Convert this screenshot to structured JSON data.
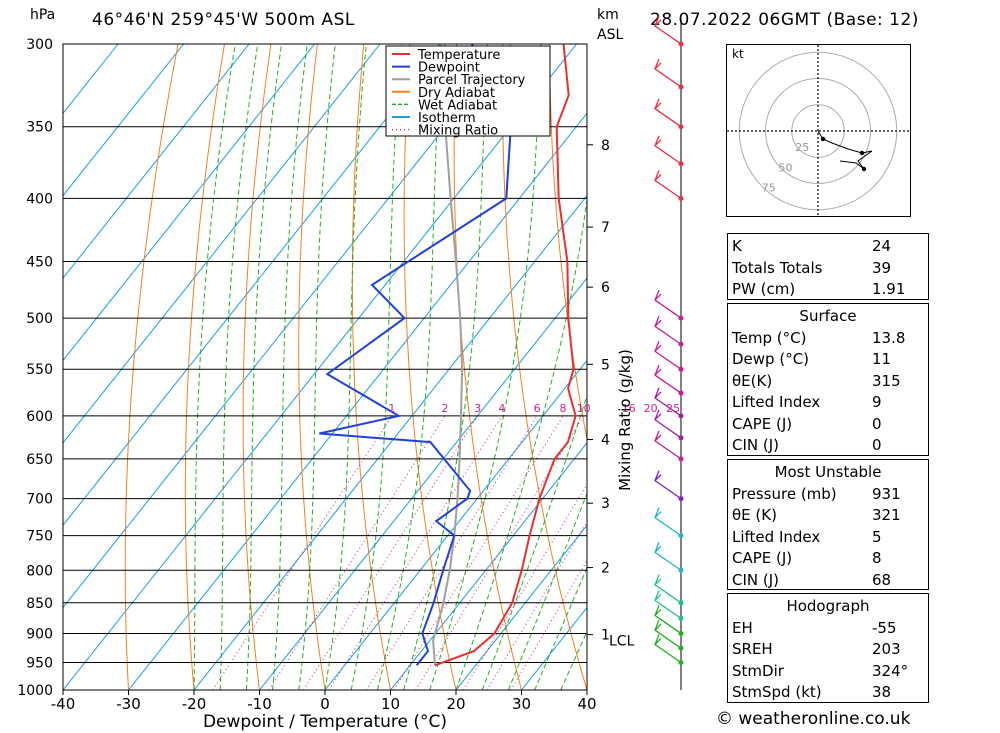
{
  "header": {
    "location": "46°46'N  259°45'W  500m  ASL",
    "datetime": "28.07.2022  06GMT  (Base: 12)",
    "pressure_unit": "hPa",
    "height_unit": "km",
    "height_ref": "ASL"
  },
  "footer": {
    "credit": "© weatheronline.co.uk"
  },
  "chart_data": {
    "type": "skew-t",
    "xlabel": "Dewpoint / Temperature (°C)",
    "ylabel_right": "Mixing Ratio (g/kg)",
    "x_ticks": [
      "-40",
      "-30",
      "-20",
      "-10",
      "0",
      "10",
      "20",
      "30",
      "40"
    ],
    "x_tick_values": [
      -40,
      -30,
      -20,
      -10,
      0,
      10,
      20,
      30,
      40
    ],
    "y_ticks": [
      "300",
      "350",
      "400",
      "450",
      "500",
      "550",
      "600",
      "650",
      "700",
      "750",
      "800",
      "850",
      "900",
      "950",
      "1000"
    ],
    "y_tick_values": [
      300,
      350,
      400,
      450,
      500,
      550,
      600,
      650,
      700,
      750,
      800,
      850,
      900,
      950,
      1000
    ],
    "km_ticks": [
      {
        "label": "8",
        "p": 362
      },
      {
        "label": "7",
        "p": 422
      },
      {
        "label": "6",
        "p": 472
      },
      {
        "label": "5",
        "p": 545
      },
      {
        "label": "4",
        "p": 627
      },
      {
        "label": "3",
        "p": 706
      },
      {
        "label": "2",
        "p": 796
      },
      {
        "label": "1",
        "p": 902
      }
    ],
    "lcl": {
      "label": "LCL",
      "p": 912
    },
    "mixing_ratio_labels": [
      "1",
      "2",
      "3",
      "4",
      "6",
      "8",
      "10",
      "16",
      "20",
      "25"
    ],
    "legend": [
      {
        "name": "Temperature",
        "color": "#e83030",
        "style": "solid"
      },
      {
        "name": "Dewpoint",
        "color": "#2040d8",
        "style": "solid"
      },
      {
        "name": "Parcel Trajectory",
        "color": "#a0a0a0",
        "style": "solid"
      },
      {
        "name": "Dry Adiabat",
        "color": "#f08020",
        "style": "solid"
      },
      {
        "name": "Wet Adiabat",
        "color": "#20b020",
        "style": "dashed"
      },
      {
        "name": "Isotherm",
        "color": "#1a9ee0",
        "style": "solid"
      },
      {
        "name": "Mixing Ratio",
        "color": "#d02090",
        "style": "dotted"
      }
    ],
    "series": [
      {
        "name": "Temperature",
        "points": [
          {
            "p": 955,
            "t": 13.8
          },
          {
            "p": 930,
            "t": 18.0
          },
          {
            "p": 900,
            "t": 19.0
          },
          {
            "p": 850,
            "t": 18.0
          },
          {
            "p": 800,
            "t": 15.5
          },
          {
            "p": 750,
            "t": 12.5
          },
          {
            "p": 700,
            "t": 9.5
          },
          {
            "p": 650,
            "t": 7.0
          },
          {
            "p": 630,
            "t": 7.0
          },
          {
            "p": 600,
            "t": 5.0
          },
          {
            "p": 570,
            "t": 0.5
          },
          {
            "p": 550,
            "t": -1.0
          },
          {
            "p": 500,
            "t": -8.0
          },
          {
            "p": 450,
            "t": -15.0
          },
          {
            "p": 400,
            "t": -24.0
          },
          {
            "p": 350,
            "t": -33.0
          },
          {
            "p": 330,
            "t": -35.0
          },
          {
            "p": 300,
            "t": -42.0
          }
        ]
      },
      {
        "name": "Dewpoint",
        "points": [
          {
            "p": 955,
            "t": 11.0
          },
          {
            "p": 930,
            "t": 11.0
          },
          {
            "p": 900,
            "t": 8.0
          },
          {
            "p": 850,
            "t": 6.0
          },
          {
            "p": 800,
            "t": 3.5
          },
          {
            "p": 750,
            "t": 1.0
          },
          {
            "p": 730,
            "t": -3.5
          },
          {
            "p": 700,
            "t": -1.5
          },
          {
            "p": 690,
            "t": -2.0
          },
          {
            "p": 630,
            "t": -14.0
          },
          {
            "p": 620,
            "t": -32.0
          },
          {
            "p": 600,
            "t": -22.0
          },
          {
            "p": 555,
            "t": -38.0
          },
          {
            "p": 500,
            "t": -33.0
          },
          {
            "p": 470,
            "t": -42.0
          },
          {
            "p": 400,
            "t": -32.0
          },
          {
            "p": 350,
            "t": -40.0
          },
          {
            "p": 330,
            "t": -46.0
          },
          {
            "p": 300,
            "t": -56.0
          }
        ]
      },
      {
        "name": "Parcel Trajectory",
        "points": [
          {
            "p": 955,
            "t": 13.8
          },
          {
            "p": 912,
            "t": 10.5
          },
          {
            "p": 850,
            "t": 7.5
          },
          {
            "p": 800,
            "t": 4.5
          },
          {
            "p": 750,
            "t": 1.0
          },
          {
            "p": 700,
            "t": -3.0
          },
          {
            "p": 650,
            "t": -7.5
          },
          {
            "p": 600,
            "t": -12.5
          },
          {
            "p": 550,
            "t": -18.0
          },
          {
            "p": 500,
            "t": -24.5
          },
          {
            "p": 450,
            "t": -32.0
          },
          {
            "p": 400,
            "t": -40.5
          },
          {
            "p": 350,
            "t": -50.0
          },
          {
            "p": 300,
            "t": -61.0
          }
        ]
      }
    ],
    "wind_barbs": [
      {
        "p": 950,
        "color": "#20b020"
      },
      {
        "p": 925,
        "color": "#20b020"
      },
      {
        "p": 900,
        "color": "#20b020"
      },
      {
        "p": 875,
        "color": "#20c090"
      },
      {
        "p": 850,
        "color": "#20c090"
      },
      {
        "p": 800,
        "color": "#20b8c0"
      },
      {
        "p": 750,
        "color": "#20b8c0"
      },
      {
        "p": 700,
        "color": "#8020c0"
      },
      {
        "p": 650,
        "color": "#c02090"
      },
      {
        "p": 625,
        "color": "#a020a0"
      },
      {
        "p": 600,
        "color": "#a020a0"
      },
      {
        "p": 575,
        "color": "#c02090"
      },
      {
        "p": 550,
        "color": "#c02090"
      },
      {
        "p": 525,
        "color": "#c02090"
      },
      {
        "p": 500,
        "color": "#c02090"
      },
      {
        "p": 400,
        "color": "#e83040"
      },
      {
        "p": 375,
        "color": "#e83040"
      },
      {
        "p": 350,
        "color": "#e83040"
      },
      {
        "p": 325,
        "color": "#e83040"
      },
      {
        "p": 300,
        "color": "#e83040"
      }
    ],
    "hodograph": {
      "unit": "kt",
      "ring_labels": [
        "25",
        "50",
        "75"
      ],
      "path": [
        [
          0,
          0
        ],
        [
          5,
          -8
        ],
        [
          14,
          -12
        ],
        [
          30,
          -18
        ],
        [
          44,
          -22
        ],
        [
          54,
          -20
        ],
        [
          40,
          -30
        ],
        [
          46,
          -38
        ],
        [
          38,
          -32
        ],
        [
          22,
          -30
        ]
      ]
    }
  },
  "indices_table": {
    "rows": [
      {
        "label": "K",
        "value": "24"
      },
      {
        "label": "Totals Totals",
        "value": "39"
      },
      {
        "label": "PW (cm)",
        "value": "1.91"
      }
    ]
  },
  "surface_table": {
    "title": "Surface",
    "rows": [
      {
        "label": "Temp (°C)",
        "value": "13.8"
      },
      {
        "label": "Dewp (°C)",
        "value": "11"
      },
      {
        "label": "θE(K)",
        "value": "315"
      },
      {
        "label": "Lifted Index",
        "value": "9"
      },
      {
        "label": "CAPE (J)",
        "value": "0"
      },
      {
        "label": "CIN (J)",
        "value": "0"
      }
    ]
  },
  "unstable_table": {
    "title": "Most Unstable",
    "rows": [
      {
        "label": "Pressure (mb)",
        "value": "931"
      },
      {
        "label": "θE (K)",
        "value": "321"
      },
      {
        "label": "Lifted Index",
        "value": "5"
      },
      {
        "label": "CAPE (J)",
        "value": "8"
      },
      {
        "label": "CIN (J)",
        "value": "68"
      }
    ]
  },
  "hodograph_table": {
    "title": "Hodograph",
    "rows": [
      {
        "label": "EH",
        "value": "-55"
      },
      {
        "label": "SREH",
        "value": "203"
      },
      {
        "label": "StmDir",
        "value": "324°"
      },
      {
        "label": "StmSpd (kt)",
        "value": "38"
      }
    ]
  }
}
